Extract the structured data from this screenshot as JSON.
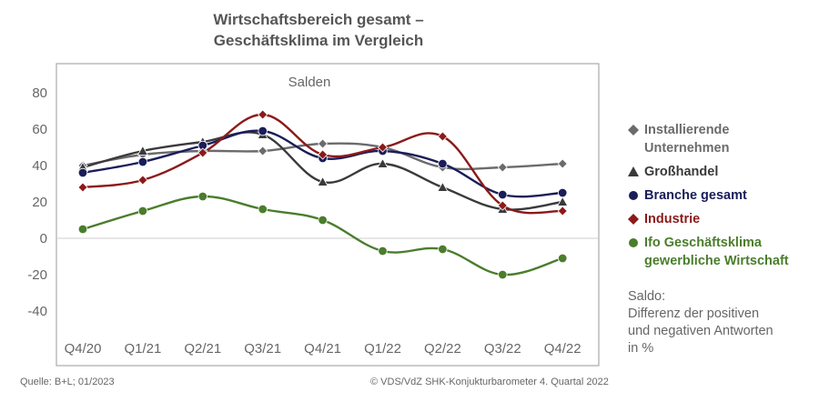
{
  "chart_data": {
    "type": "line",
    "title_lines": [
      "Wirtschaftsbereich gesamt –",
      "Geschäftsklima im Vergleich"
    ],
    "subtitle": "Salden",
    "categories": [
      "Q4/20",
      "Q1/21",
      "Q2/21",
      "Q3/21",
      "Q4/21",
      "Q1/22",
      "Q2/22",
      "Q3/22",
      "Q4/22"
    ],
    "y_ticks": [
      "80",
      "60",
      "40",
      "20",
      "0",
      "-20",
      "-40"
    ],
    "ylim": [
      -50,
      90
    ],
    "grid": false,
    "legend_position": "right",
    "series": [
      {
        "name": "Installierende Unternehmen",
        "name_lines": [
          "Installierende",
          "Unternehmen"
        ],
        "color": "#6b6b6e",
        "marker": "diamond",
        "values": [
          40,
          46,
          48,
          48,
          52,
          50,
          39,
          39,
          41
        ]
      },
      {
        "name": "Großhandel",
        "name_lines": [
          "Großhandel"
        ],
        "color": "#3a3a3c",
        "marker": "triangle",
        "values": [
          39,
          48,
          53,
          57,
          31,
          41,
          28,
          16,
          20
        ]
      },
      {
        "name": "Branche gesamt",
        "name_lines": [
          "Branche gesamt"
        ],
        "color": "#1a1d59",
        "marker": "circle",
        "values": [
          36,
          42,
          51,
          59,
          44,
          48,
          41,
          24,
          25
        ]
      },
      {
        "name": "Industrie",
        "name_lines": [
          "Industrie"
        ],
        "color": "#8b1a1a",
        "marker": "diamond",
        "values": [
          28,
          32,
          47,
          68,
          46,
          50,
          56,
          18,
          15
        ]
      },
      {
        "name": "Ifo Geschäftsklima gewerbliche Wirtschaft",
        "name_lines": [
          "Ifo Geschäftsklima",
          "gewerbliche Wirtschaft"
        ],
        "color": "#4a7d2c",
        "marker": "circle",
        "values": [
          5,
          15,
          23,
          16,
          10,
          -7,
          -6,
          -20,
          -11
        ]
      }
    ]
  },
  "note_lines": [
    "Saldo:",
    "Differenz der positiven",
    "und negativen Antworten",
    "in %"
  ],
  "source": "Quelle: B+L; 01/2023",
  "copyright": "© VDS/VdZ SHK-Konjukturbarometer 4. Quartal 2022"
}
